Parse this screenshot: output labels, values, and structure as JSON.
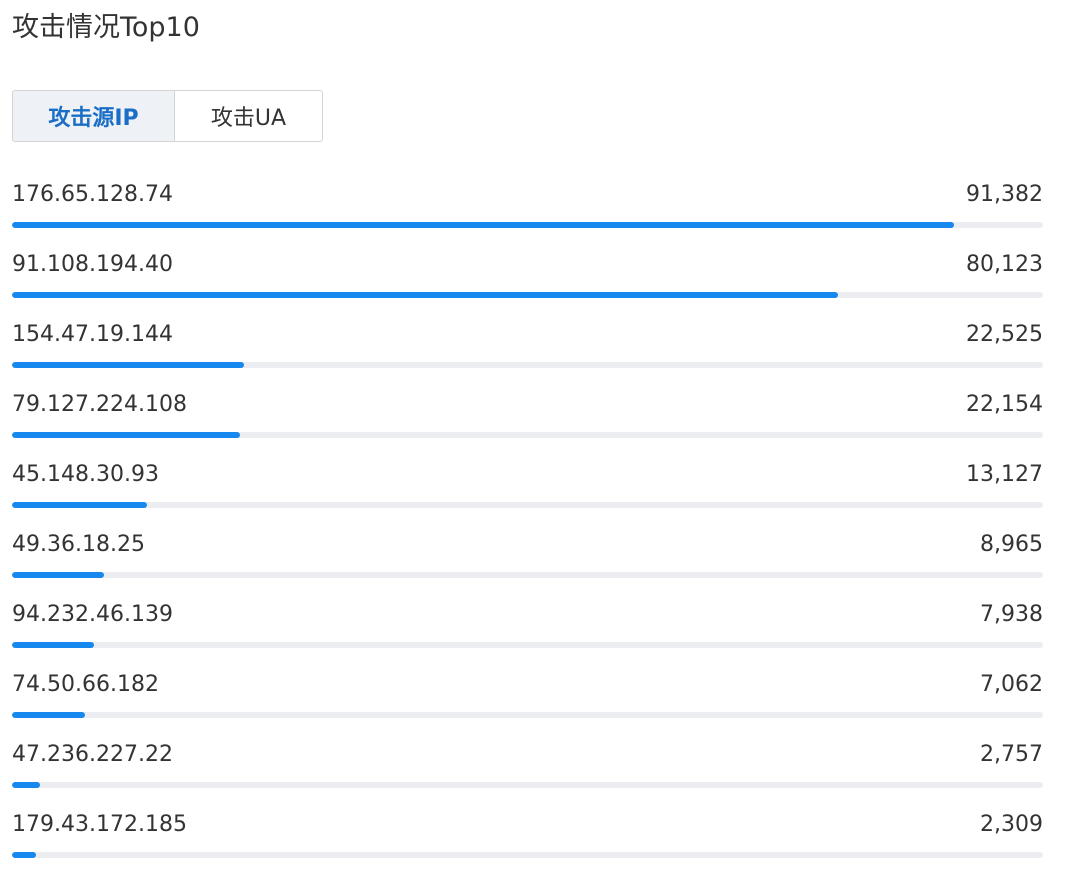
{
  "title": "攻击情况Top10",
  "tabs": [
    {
      "label": "攻击源IP",
      "active": true
    },
    {
      "label": "攻击UA",
      "active": false
    }
  ],
  "colors": {
    "accent": "#1688ee",
    "track": "#ebedf0",
    "active_tab_bg": "#eef1f6",
    "active_tab_text": "#1a6ec6"
  },
  "chart_data": {
    "type": "bar",
    "orientation": "horizontal",
    "title": "攻击情况Top10",
    "xlim": [
      0,
      100000
    ],
    "categories": [
      "176.65.128.74",
      "91.108.194.40",
      "154.47.19.144",
      "79.127.224.108",
      "45.148.30.93",
      "49.36.18.25",
      "94.232.46.139",
      "74.50.66.182",
      "47.236.227.22",
      "179.43.172.185"
    ],
    "values": [
      91382,
      80123,
      22525,
      22154,
      13127,
      8965,
      7938,
      7062,
      2757,
      2309
    ],
    "value_labels": [
      "91,382",
      "80,123",
      "22,525",
      "22,154",
      "13,127",
      "8,965",
      "7,938",
      "7,062",
      "2,757",
      "2,309"
    ]
  }
}
